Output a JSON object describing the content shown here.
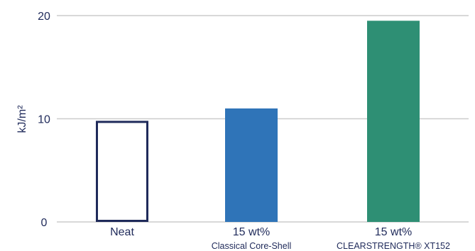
{
  "chart_data": {
    "type": "bar",
    "categories": [
      {
        "label": "Neat",
        "sublabel": ""
      },
      {
        "label": "15 wt%",
        "sublabel": "Classical Core-Shell"
      },
      {
        "label": "15 wt%",
        "sublabel": "CLEARSTRENGTH® XT152"
      }
    ],
    "values": [
      9.8,
      11.0,
      19.5
    ],
    "bar_styles": [
      {
        "fill": "#ffffff",
        "stroke": "#1f2a5a"
      },
      {
        "fill": "#2f74b8",
        "stroke": "none"
      },
      {
        "fill": "#2e8f74",
        "stroke": "none"
      }
    ],
    "ylabel": "kJ/m²",
    "yticks": [
      0,
      10,
      20
    ],
    "ylim": [
      0,
      20
    ],
    "grid": true,
    "colors": {
      "text": "#1f2a5a",
      "grid": "#cccccc"
    }
  }
}
